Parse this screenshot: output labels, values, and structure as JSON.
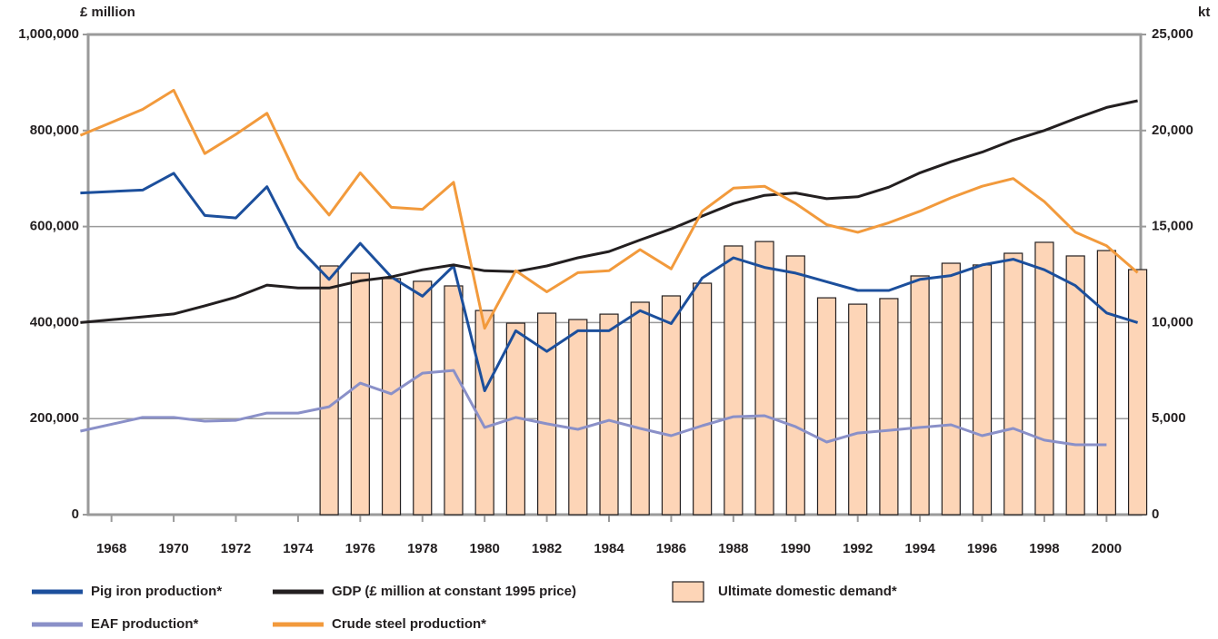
{
  "chart_data": {
    "type": "line",
    "y_label": "£ million",
    "y2_label": "kt",
    "x": [
      1967,
      1969,
      1970,
      1971,
      1972,
      1973,
      1974,
      1975,
      1976,
      1977,
      1978,
      1979,
      1980,
      1981,
      1982,
      1983,
      1984,
      1985,
      1986,
      1987,
      1988,
      1989,
      1990,
      1991,
      1992,
      1993,
      1994,
      1995,
      1996,
      1997,
      1998,
      1999,
      2000,
      2001
    ],
    "xlim": [
      1967.25,
      2001.1
    ],
    "xticks": [
      1968,
      1970,
      1972,
      1974,
      1976,
      1978,
      1980,
      1982,
      1984,
      1986,
      1988,
      1990,
      1992,
      1994,
      1996,
      1998,
      2000
    ],
    "ylim": [
      0,
      1000000
    ],
    "yticks": [
      0,
      {
        "value": 200000,
        "label": "200,000"
      },
      {
        "value": 400000,
        "label": "400,000"
      },
      {
        "value": 600000,
        "label": "600,000"
      },
      {
        "value": 800000,
        "label": "800,000"
      },
      {
        "value": 1000000,
        "label": "1,000,000"
      }
    ],
    "y2lim": [
      0,
      25000
    ],
    "y2ticks": [
      0,
      {
        "value": 5000,
        "label": "5,000"
      },
      {
        "value": 10000,
        "label": "10,000"
      },
      {
        "value": 15000,
        "label": "15,000"
      },
      {
        "value": 20000,
        "label": "20,000"
      },
      {
        "value": 25000,
        "label": "25,000"
      }
    ],
    "grid": true,
    "series": [
      {
        "name": "Pig iron production*",
        "color": "#1c4f9c",
        "type": "line",
        "values": [
          670000,
          676000,
          711000,
          623000,
          618000,
          683000,
          557000,
          490000,
          565000,
          495000,
          455000,
          518000,
          258000,
          383000,
          340000,
          383000,
          383000,
          425000,
          398000,
          493000,
          535000,
          515000,
          503000,
          485000,
          467000,
          467000,
          490000,
          498000,
          520000,
          532000,
          510000,
          477000,
          420000,
          400000
        ]
      },
      {
        "name": "GDP (£ million at constant 1995 price)",
        "color": "#231f20",
        "type": "line",
        "values": [
          400000,
          412000,
          418000,
          435000,
          453000,
          478000,
          472000,
          472000,
          487000,
          495000,
          510000,
          520000,
          508000,
          506000,
          518000,
          535000,
          548000,
          572000,
          595000,
          622000,
          648000,
          665000,
          670000,
          658000,
          662000,
          682000,
          712000,
          735000,
          755000,
          780000,
          800000,
          825000,
          848000,
          862000
        ]
      },
      {
        "name": "Ultimate domestic demand*",
        "color": "#fdd5b7",
        "type": "bar",
        "axis": "y2",
        "values": [
          null,
          null,
          null,
          null,
          null,
          null,
          null,
          12950,
          12570,
          12290,
          12150,
          11910,
          10630,
          9970,
          10490,
          10160,
          10440,
          11060,
          11390,
          12050,
          13990,
          14220,
          13470,
          11290,
          10960,
          11250,
          12430,
          13090,
          13000,
          13610,
          14180,
          13470,
          13750,
          12760
        ]
      },
      {
        "name": "EAF production*",
        "color": "#8a90c8",
        "type": "line",
        "axis": "y2",
        "values": [
          4350,
          5060,
          5060,
          4870,
          4910,
          5290,
          5290,
          5620,
          6850,
          6290,
          7370,
          7510,
          4540,
          5060,
          4730,
          4440,
          4910,
          4490,
          4110,
          4630,
          5100,
          5150,
          4580,
          3780,
          4250,
          4390,
          4540,
          4680,
          4110,
          4490,
          3880,
          3640,
          3640,
          null
        ]
      },
      {
        "name": "Crude steel production*",
        "color": "#f29a3c",
        "type": "line",
        "axis": "y2",
        "values": [
          19750,
          21100,
          22100,
          18800,
          19800,
          20900,
          17500,
          15600,
          17800,
          16000,
          15900,
          17300,
          9700,
          12700,
          11600,
          12600,
          12700,
          13800,
          12800,
          15800,
          17000,
          17100,
          16200,
          15100,
          14700,
          15200,
          15800,
          16500,
          17100,
          17500,
          16300,
          14700,
          14000,
          12600
        ]
      }
    ]
  }
}
